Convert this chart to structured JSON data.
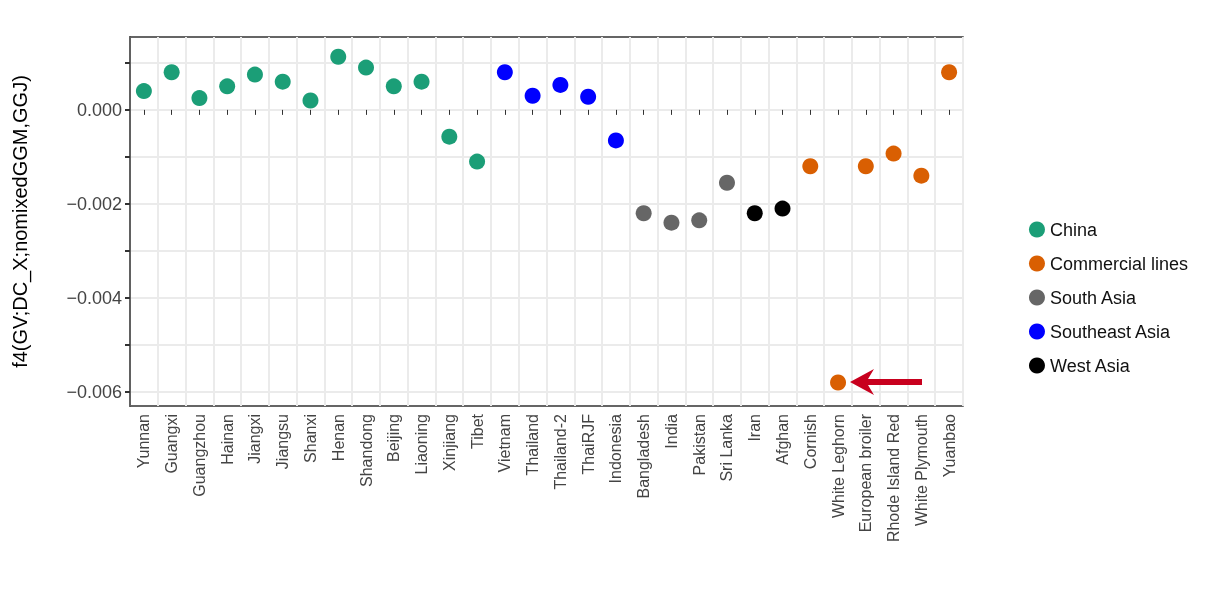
{
  "chart_data": {
    "type": "scatter",
    "ylabel": "f4(GV;DC_X;nomixedGGM,GGJ)",
    "categories": [
      "Yunnan",
      "Guangxi",
      "Guangzhou",
      "Hainan",
      "Jiangxi",
      "Jiangsu",
      "Shanxi",
      "Henan",
      "Shandong",
      "Beijing",
      "Liaoning",
      "Xinjiang",
      "Tibet",
      "Vietnam",
      "Thailand",
      "Thailand-2",
      "ThaiRJF",
      "Indonesia",
      "Bangladesh",
      "India",
      "Pakistan",
      "Sri Lanka",
      "Iran",
      "Afghan",
      "Cornish",
      "White Leghorn",
      "European broiler",
      "Rhode Island Red",
      "White Plymouth",
      "Yuanbao"
    ],
    "series": [
      {
        "name": "China",
        "color": "#1b9e77",
        "values": [
          0.0004,
          0.0008,
          0.00025,
          0.0005,
          0.00075,
          0.0006,
          0.0002,
          0.00113,
          0.0009,
          0.0005,
          0.0006,
          -0.00057,
          -0.0011,
          null,
          null,
          null,
          null,
          null,
          null,
          null,
          null,
          null,
          null,
          null,
          null,
          null,
          null,
          null,
          null,
          null
        ]
      },
      {
        "name": "Commercial lines",
        "color": "#d95f02",
        "values": [
          null,
          null,
          null,
          null,
          null,
          null,
          null,
          null,
          null,
          null,
          null,
          null,
          null,
          null,
          null,
          null,
          null,
          null,
          null,
          null,
          null,
          null,
          null,
          null,
          -0.0012,
          -0.0058,
          -0.0012,
          -0.00093,
          -0.0014,
          0.0008
        ]
      },
      {
        "name": "South Asia",
        "color": "#666666",
        "values": [
          null,
          null,
          null,
          null,
          null,
          null,
          null,
          null,
          null,
          null,
          null,
          null,
          null,
          null,
          null,
          null,
          null,
          null,
          -0.0022,
          -0.0024,
          -0.00235,
          -0.00155,
          null,
          null,
          null,
          null,
          null,
          null,
          null,
          null
        ]
      },
      {
        "name": "Southeast Asia",
        "color": "#0000ff",
        "values": [
          null,
          null,
          null,
          null,
          null,
          null,
          null,
          null,
          null,
          null,
          null,
          null,
          null,
          0.0008,
          0.0003,
          0.00053,
          0.00028,
          -0.00065,
          null,
          null,
          null,
          null,
          null,
          null,
          null,
          null,
          null,
          null,
          null,
          null
        ]
      },
      {
        "name": "West Asia",
        "color": "#000000",
        "values": [
          null,
          null,
          null,
          null,
          null,
          null,
          null,
          null,
          null,
          null,
          null,
          null,
          null,
          null,
          null,
          null,
          null,
          null,
          null,
          null,
          null,
          null,
          -0.0022,
          -0.0021,
          null,
          null,
          null,
          null,
          null,
          null
        ]
      }
    ],
    "ylim": [
      -0.0063,
      0.00155
    ],
    "yticks": [
      {
        "value": -0.006,
        "label": "−0.006"
      },
      {
        "value": -0.005,
        "label": null
      },
      {
        "value": -0.004,
        "label": "−0.004"
      },
      {
        "value": -0.003,
        "label": null
      },
      {
        "value": -0.002,
        "label": "−0.002"
      },
      {
        "value": -0.001,
        "label": null
      },
      {
        "value": 0,
        "label": "0.000"
      },
      {
        "value": 0.001,
        "label": null
      }
    ],
    "grid": true,
    "legend": "right",
    "marker": "circle"
  }
}
